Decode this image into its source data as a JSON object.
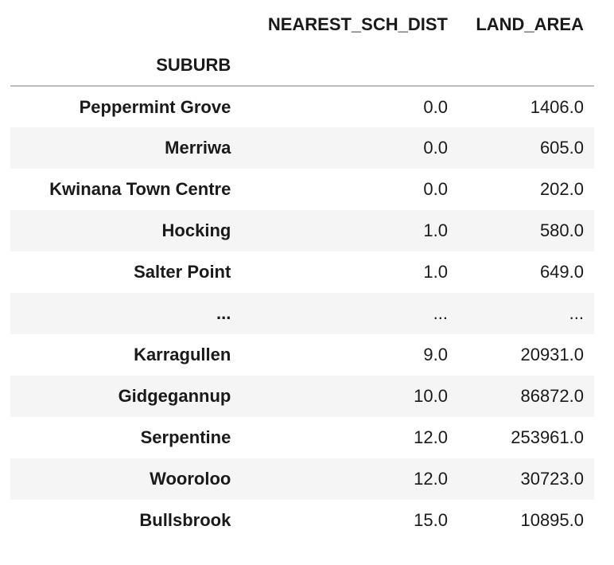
{
  "table": {
    "columns": [
      "NEAREST_SCH_DIST",
      "LAND_AREA"
    ],
    "index_name": "SUBURB",
    "rows": [
      {
        "suburb": "Peppermint Grove",
        "nearest_sch_dist": "0.0",
        "land_area": "1406.0"
      },
      {
        "suburb": "Merriwa",
        "nearest_sch_dist": "0.0",
        "land_area": "605.0"
      },
      {
        "suburb": "Kwinana Town Centre",
        "nearest_sch_dist": "0.0",
        "land_area": "202.0"
      },
      {
        "suburb": "Hocking",
        "nearest_sch_dist": "1.0",
        "land_area": "580.0"
      },
      {
        "suburb": "Salter Point",
        "nearest_sch_dist": "1.0",
        "land_area": "649.0"
      },
      {
        "suburb": "...",
        "nearest_sch_dist": "...",
        "land_area": "..."
      },
      {
        "suburb": "Karragullen",
        "nearest_sch_dist": "9.0",
        "land_area": "20931.0"
      },
      {
        "suburb": "Gidgegannup",
        "nearest_sch_dist": "10.0",
        "land_area": "86872.0"
      },
      {
        "suburb": "Serpentine",
        "nearest_sch_dist": "12.0",
        "land_area": "253961.0"
      },
      {
        "suburb": "Wooroloo",
        "nearest_sch_dist": "12.0",
        "land_area": "30723.0"
      },
      {
        "suburb": "Bullsbrook",
        "nearest_sch_dist": "15.0",
        "land_area": "10895.0"
      }
    ]
  }
}
